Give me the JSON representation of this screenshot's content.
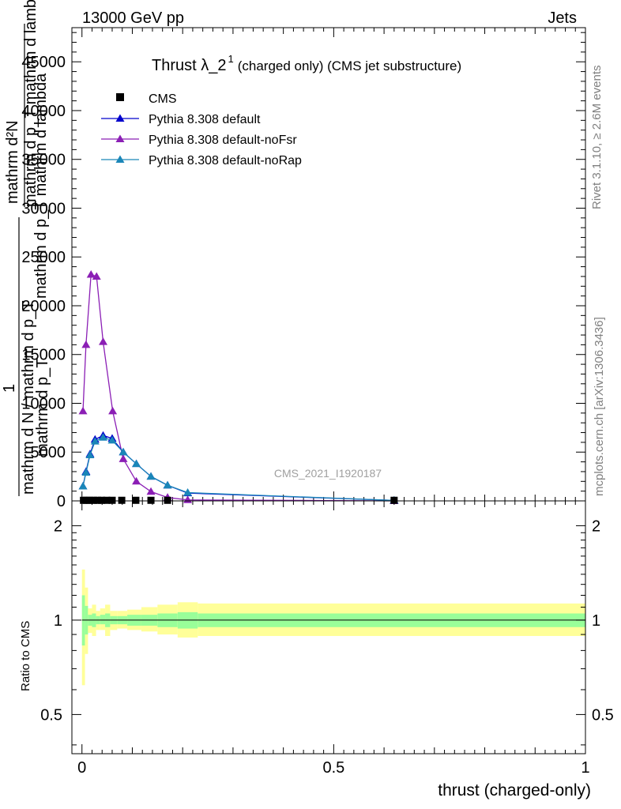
{
  "header": {
    "left": "13000 GeV pp",
    "right": "Jets"
  },
  "side_text": {
    "rivet": "Rivet 3.1.10, ≥ 2.6M events",
    "mcplots": "mcplots.cern.ch [arXiv:1306.3436]"
  },
  "plot_title": {
    "main": "Thrust λ_2",
    "sup": "1",
    "detail": "(charged only) (CMS jet substructure)"
  },
  "watermark": "CMS_2021_I1920187",
  "y_label_upper": {
    "frac_one": "1",
    "frac_denominator": "mathrm d N / mathrm d p_T",
    "main_numerator": "mathrm d²N",
    "main_denominator": "mathrm d p_T mathrm d lambda",
    "duplicate_a": "mathrm d p_T mathrm d lambda",
    "duplicate_b": "mathrm d p_T"
  },
  "y_label_ratio": "Ratio to CMS",
  "x_label": "thrust (charged-only)",
  "colors": {
    "cms": "#000000",
    "default": "#0000cc",
    "noFsr": "#8b1fb5",
    "noRap": "#1a86b8",
    "band_outer": "#ffff99",
    "band_inner": "#99ff99"
  },
  "chart_data": [
    {
      "type": "line",
      "title": "Thrust λ_2 1 (charged only) (CMS jet substructure)",
      "xlabel": "thrust (charged-only)",
      "ylabel": "1 / (mathrm d N / mathrm d p_T) · mathrm d²N / (mathrm d p_T mathrm d lambda)",
      "xlim": [
        -0.02,
        1.0
      ],
      "ylim": [
        0,
        48500
      ],
      "y_ticks": [
        0,
        5000,
        10000,
        15000,
        20000,
        25000,
        30000,
        35000,
        40000,
        45000
      ],
      "y_tick_labels": [
        "0",
        "5000",
        "10000",
        "15000",
        "20000",
        "25000",
        "30000",
        "35000",
        "40000",
        "45000"
      ],
      "legend": "top-left",
      "series": [
        {
          "name": "CMS",
          "key": "cms",
          "marker": "square",
          "x": [
            0.003,
            0.009,
            0.016,
            0.023,
            0.031,
            0.039,
            0.049,
            0.06,
            0.079,
            0.107,
            0.137,
            0.17,
            0.62
          ],
          "y": [
            60,
            60,
            60,
            60,
            60,
            60,
            60,
            60,
            60,
            60,
            60,
            60,
            60
          ]
        },
        {
          "name": "Pythia 8.308 default",
          "key": "default",
          "marker": "triangle",
          "x": [
            0.002,
            0.008,
            0.016,
            0.026,
            0.042,
            0.06,
            0.082,
            0.108,
            0.137,
            0.17,
            0.21,
            0.62
          ],
          "y": [
            1500,
            3000,
            4800,
            6300,
            6700,
            6400,
            5000,
            3800,
            2500,
            1600,
            800,
            50
          ]
        },
        {
          "name": "Pythia 8.308 default-noFsr",
          "key": "noFsr",
          "marker": "triangle",
          "x": [
            0.002,
            0.008,
            0.018,
            0.029,
            0.042,
            0.061,
            0.082,
            0.108,
            0.137,
            0.17,
            0.21,
            0.62
          ],
          "y": [
            9200,
            16000,
            23200,
            23000,
            16300,
            9200,
            4300,
            2000,
            950,
            350,
            100,
            0
          ]
        },
        {
          "name": "Pythia 8.308 default-noRap",
          "key": "noRap",
          "marker": "triangle",
          "x": [
            0.002,
            0.008,
            0.016,
            0.026,
            0.042,
            0.06,
            0.082,
            0.108,
            0.137,
            0.17,
            0.21,
            0.62
          ],
          "y": [
            1500,
            2900,
            4700,
            6100,
            6500,
            6200,
            5000,
            3800,
            2500,
            1600,
            850,
            50
          ]
        }
      ]
    },
    {
      "type": "area",
      "title": "",
      "xlabel": "thrust (charged-only)",
      "ylabel": "Ratio to CMS",
      "xlim": [
        -0.02,
        1.0
      ],
      "ylim": [
        0.375,
        2.4
      ],
      "log_scale_y": true,
      "x_ticks": [
        0,
        0.5,
        1
      ],
      "x_tick_labels": [
        "0",
        "0.5",
        "1"
      ],
      "y_ticks": [
        0.5,
        1,
        2
      ],
      "y_tick_labels": [
        "0.5",
        "1",
        "2"
      ],
      "reference_line": 1,
      "bins": [
        0,
        0.006,
        0.012,
        0.02,
        0.028,
        0.036,
        0.046,
        0.056,
        0.07,
        0.09,
        0.118,
        0.15,
        0.19,
        0.23,
        1.0
      ],
      "band_outer": {
        "lo": [
          0.62,
          0.78,
          0.91,
          0.89,
          0.93,
          0.93,
          0.89,
          0.93,
          0.94,
          0.93,
          0.92,
          0.9,
          0.88,
          0.89
        ],
        "hi": [
          1.45,
          1.27,
          1.09,
          1.12,
          1.07,
          1.09,
          1.12,
          1.07,
          1.07,
          1.08,
          1.1,
          1.12,
          1.14,
          1.13
        ]
      },
      "band_inner": {
        "lo": [
          0.83,
          0.9,
          0.96,
          0.95,
          0.97,
          0.97,
          0.95,
          0.97,
          0.97,
          0.96,
          0.96,
          0.95,
          0.94,
          0.95
        ],
        "hi": [
          1.2,
          1.11,
          1.04,
          1.05,
          1.03,
          1.04,
          1.05,
          1.03,
          1.03,
          1.04,
          1.04,
          1.05,
          1.06,
          1.05
        ]
      }
    }
  ]
}
